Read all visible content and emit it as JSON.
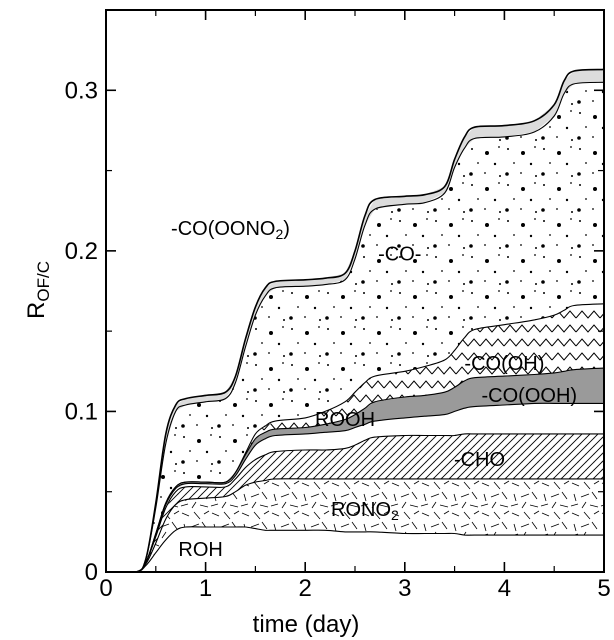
{
  "chart_data": {
    "type": "area",
    "xlabel": "time (day)",
    "ylabel": {
      "main": "R",
      "sub": "OF/C"
    },
    "xlim": [
      0,
      5
    ],
    "ylim": [
      0,
      0.35
    ],
    "xticks": [
      "0",
      "1",
      "2",
      "3",
      "4",
      "5"
    ],
    "yticks": [
      "0",
      "0.1",
      "0.2",
      "0.3"
    ],
    "grid": false,
    "stack_order_bottom_to_top": [
      "ROH",
      "RONO2",
      "-CHO",
      "ROOH",
      "-CO(OOH)",
      "-CO(OH)",
      "-CO-",
      "-CO(OONO2)"
    ],
    "x": [
      0,
      0.3,
      0.4,
      0.5,
      0.6,
      0.7,
      0.8,
      1.0,
      1.2,
      1.3,
      1.4,
      1.5,
      1.6,
      1.7,
      2.0,
      2.2,
      2.4,
      2.5,
      2.6,
      2.7,
      3.0,
      3.2,
      3.4,
      3.5,
      3.6,
      3.7,
      4.0,
      4.3,
      4.5,
      4.6,
      4.7,
      5.0
    ],
    "cumulative_tops": {
      "ROH": [
        0,
        0,
        0.004,
        0.012,
        0.02,
        0.026,
        0.028,
        0.028,
        0.028,
        0.028,
        0.028,
        0.027,
        0.026,
        0.026,
        0.026,
        0.026,
        0.025,
        0.025,
        0.025,
        0.025,
        0.024,
        0.024,
        0.024,
        0.024,
        0.023,
        0.023,
        0.023,
        0.023,
        0.023,
        0.023,
        0.023,
        0.023
      ],
      "RONO2": [
        0,
        0,
        0.005,
        0.018,
        0.033,
        0.042,
        0.045,
        0.046,
        0.047,
        0.05,
        0.054,
        0.056,
        0.057,
        0.058,
        0.058,
        0.058,
        0.058,
        0.058,
        0.058,
        0.058,
        0.058,
        0.058,
        0.058,
        0.058,
        0.058,
        0.058,
        0.058,
        0.058,
        0.058,
        0.058,
        0.058,
        0.058
      ],
      "-CHO": [
        0,
        0,
        0.006,
        0.022,
        0.04,
        0.05,
        0.053,
        0.053,
        0.053,
        0.058,
        0.065,
        0.07,
        0.073,
        0.075,
        0.076,
        0.076,
        0.077,
        0.079,
        0.082,
        0.084,
        0.085,
        0.085,
        0.085,
        0.085,
        0.086,
        0.086,
        0.086,
        0.086,
        0.086,
        0.086,
        0.086,
        0.086
      ],
      "ROOH": [
        0,
        0,
        0.006,
        0.023,
        0.042,
        0.052,
        0.055,
        0.055,
        0.055,
        0.06,
        0.07,
        0.079,
        0.083,
        0.085,
        0.086,
        0.087,
        0.088,
        0.09,
        0.092,
        0.094,
        0.096,
        0.097,
        0.098,
        0.1,
        0.102,
        0.103,
        0.104,
        0.105,
        0.105,
        0.105,
        0.105,
        0.105
      ],
      "-CO(OOH)": [
        0,
        0,
        0.006,
        0.024,
        0.043,
        0.053,
        0.056,
        0.056,
        0.056,
        0.062,
        0.073,
        0.083,
        0.087,
        0.089,
        0.09,
        0.092,
        0.095,
        0.098,
        0.102,
        0.106,
        0.109,
        0.11,
        0.112,
        0.115,
        0.119,
        0.121,
        0.122,
        0.123,
        0.124,
        0.125,
        0.126,
        0.127
      ],
      "-CO(OH)": [
        0,
        0,
        0.006,
        0.024,
        0.043,
        0.053,
        0.056,
        0.056,
        0.056,
        0.062,
        0.074,
        0.086,
        0.091,
        0.094,
        0.096,
        0.1,
        0.106,
        0.112,
        0.118,
        0.122,
        0.125,
        0.128,
        0.132,
        0.138,
        0.146,
        0.151,
        0.154,
        0.157,
        0.16,
        0.163,
        0.166,
        0.167
      ],
      "-CO-": [
        0,
        0,
        0.008,
        0.04,
        0.08,
        0.1,
        0.104,
        0.106,
        0.108,
        0.118,
        0.14,
        0.16,
        0.172,
        0.177,
        0.178,
        0.179,
        0.182,
        0.195,
        0.216,
        0.226,
        0.229,
        0.23,
        0.236,
        0.252,
        0.264,
        0.27,
        0.271,
        0.274,
        0.284,
        0.298,
        0.304,
        0.305
      ],
      "-CO(OONO2)": [
        0,
        0,
        0.008,
        0.043,
        0.086,
        0.104,
        0.108,
        0.11,
        0.112,
        0.122,
        0.145,
        0.165,
        0.177,
        0.181,
        0.182,
        0.183,
        0.186,
        0.2,
        0.222,
        0.232,
        0.234,
        0.235,
        0.24,
        0.257,
        0.271,
        0.277,
        0.278,
        0.281,
        0.291,
        0.306,
        0.312,
        0.313
      ]
    },
    "labels": [
      {
        "text": "ROH",
        "sub": "",
        "after": "",
        "x": 0.95,
        "y": 0.013
      },
      {
        "text": "RONO",
        "sub": "2",
        "after": "",
        "x": 2.6,
        "y": 0.038
      },
      {
        "text": "-CHO",
        "sub": "",
        "after": "",
        "x": 3.75,
        "y": 0.069
      },
      {
        "text": "ROOH",
        "sub": "",
        "after": "",
        "x": 2.4,
        "y": 0.094
      },
      {
        "text": "-CO(OOH)",
        "sub": "",
        "after": "",
        "x": 4.25,
        "y": 0.109
      },
      {
        "text": "-CO(OH)",
        "sub": "",
        "after": "",
        "x": 4.0,
        "y": 0.129
      },
      {
        "text": "-CO-",
        "sub": "",
        "after": "",
        "x": 2.95,
        "y": 0.197
      },
      {
        "text": "-CO(OONO",
        "sub": "2",
        "after": ")",
        "x": 1.25,
        "y": 0.213
      }
    ],
    "colors": {
      "line": "#000000",
      "-CO(OOH)": "#9a9a9a",
      "-CO(OONO2)": "#dcdcdc",
      "background": "#ffffff"
    }
  }
}
